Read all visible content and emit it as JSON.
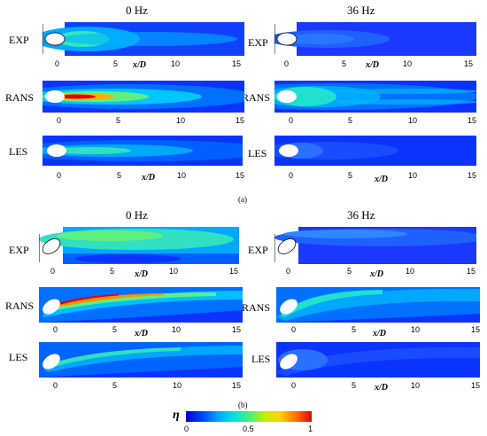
{
  "figure": {
    "parts": [
      {
        "label": "(a)",
        "columns": [
          "0 Hz",
          "36 Hz"
        ],
        "rows": [
          "EXP",
          "RANS",
          "LES"
        ]
      },
      {
        "label": "(b)",
        "columns": [
          "0 Hz",
          "36 Hz"
        ],
        "rows": [
          "EXP",
          "RANS",
          "LES"
        ]
      }
    ],
    "axis": {
      "xlabel": "x/D",
      "ticks": [
        "0",
        "5",
        "10",
        "15"
      ]
    },
    "colorbar": {
      "symbol": "η",
      "ticks": [
        "0",
        "0.5",
        "1"
      ],
      "colors": [
        "#0000c8",
        "#0040ff",
        "#00a0ff",
        "#00e0e0",
        "#40f080",
        "#c0f000",
        "#ffd000",
        "#ff7000",
        "#e00000"
      ]
    }
  }
}
